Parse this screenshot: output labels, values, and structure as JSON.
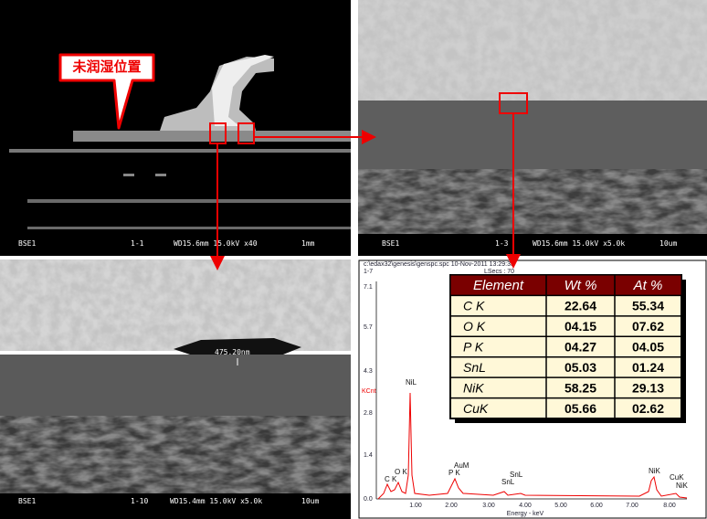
{
  "panels": [
    {
      "footer": [
        "BSE1",
        "1-1",
        "WD15.6mm 15.0kV x40",
        "1mm"
      ],
      "callout": "未润湿位置"
    },
    {
      "footer": [
        "BSE1",
        "1-3",
        "WD15.6mm 15.0kV x5.0k",
        "10um"
      ]
    },
    {
      "footer": [
        "BSE1",
        "1-10",
        "WD15.4mm 15.0kV x5.0k",
        "10um"
      ],
      "measurement": "475.20nm"
    }
  ],
  "spectrum": {
    "header": [
      "c:\\edax32\\genesis\\genspc.spc 10-Nov-2011 13:29:33",
      "1-7",
      "LSecs : 70"
    ],
    "y_label": "KCnt",
    "y_ticks": [
      "7.1",
      "5.7",
      "4.3",
      "2.8",
      "1.4",
      "0.0"
    ],
    "x_ticks": [
      "1.00",
      "2.00",
      "3.00",
      "4.00",
      "5.00",
      "6.00",
      "7.00",
      "8.00"
    ],
    "x_label": "Energy - keV",
    "peaks": [
      "C K",
      "O K",
      "NiL",
      "P K",
      "AuM",
      "SnL",
      "SnL",
      "NiK",
      "CuK",
      "NiK"
    ]
  },
  "table": {
    "header": [
      "Element",
      "Wt %",
      "At %"
    ],
    "rows": [
      [
        "C K",
        "22.64",
        "55.34"
      ],
      [
        "O K",
        "04.15",
        "07.62"
      ],
      [
        "P K",
        "04.27",
        "04.05"
      ],
      [
        "SnL",
        "05.03",
        "01.24"
      ],
      [
        "NiK",
        "58.25",
        "29.13"
      ],
      [
        "CuK",
        "05.66",
        "02.62"
      ]
    ]
  }
}
